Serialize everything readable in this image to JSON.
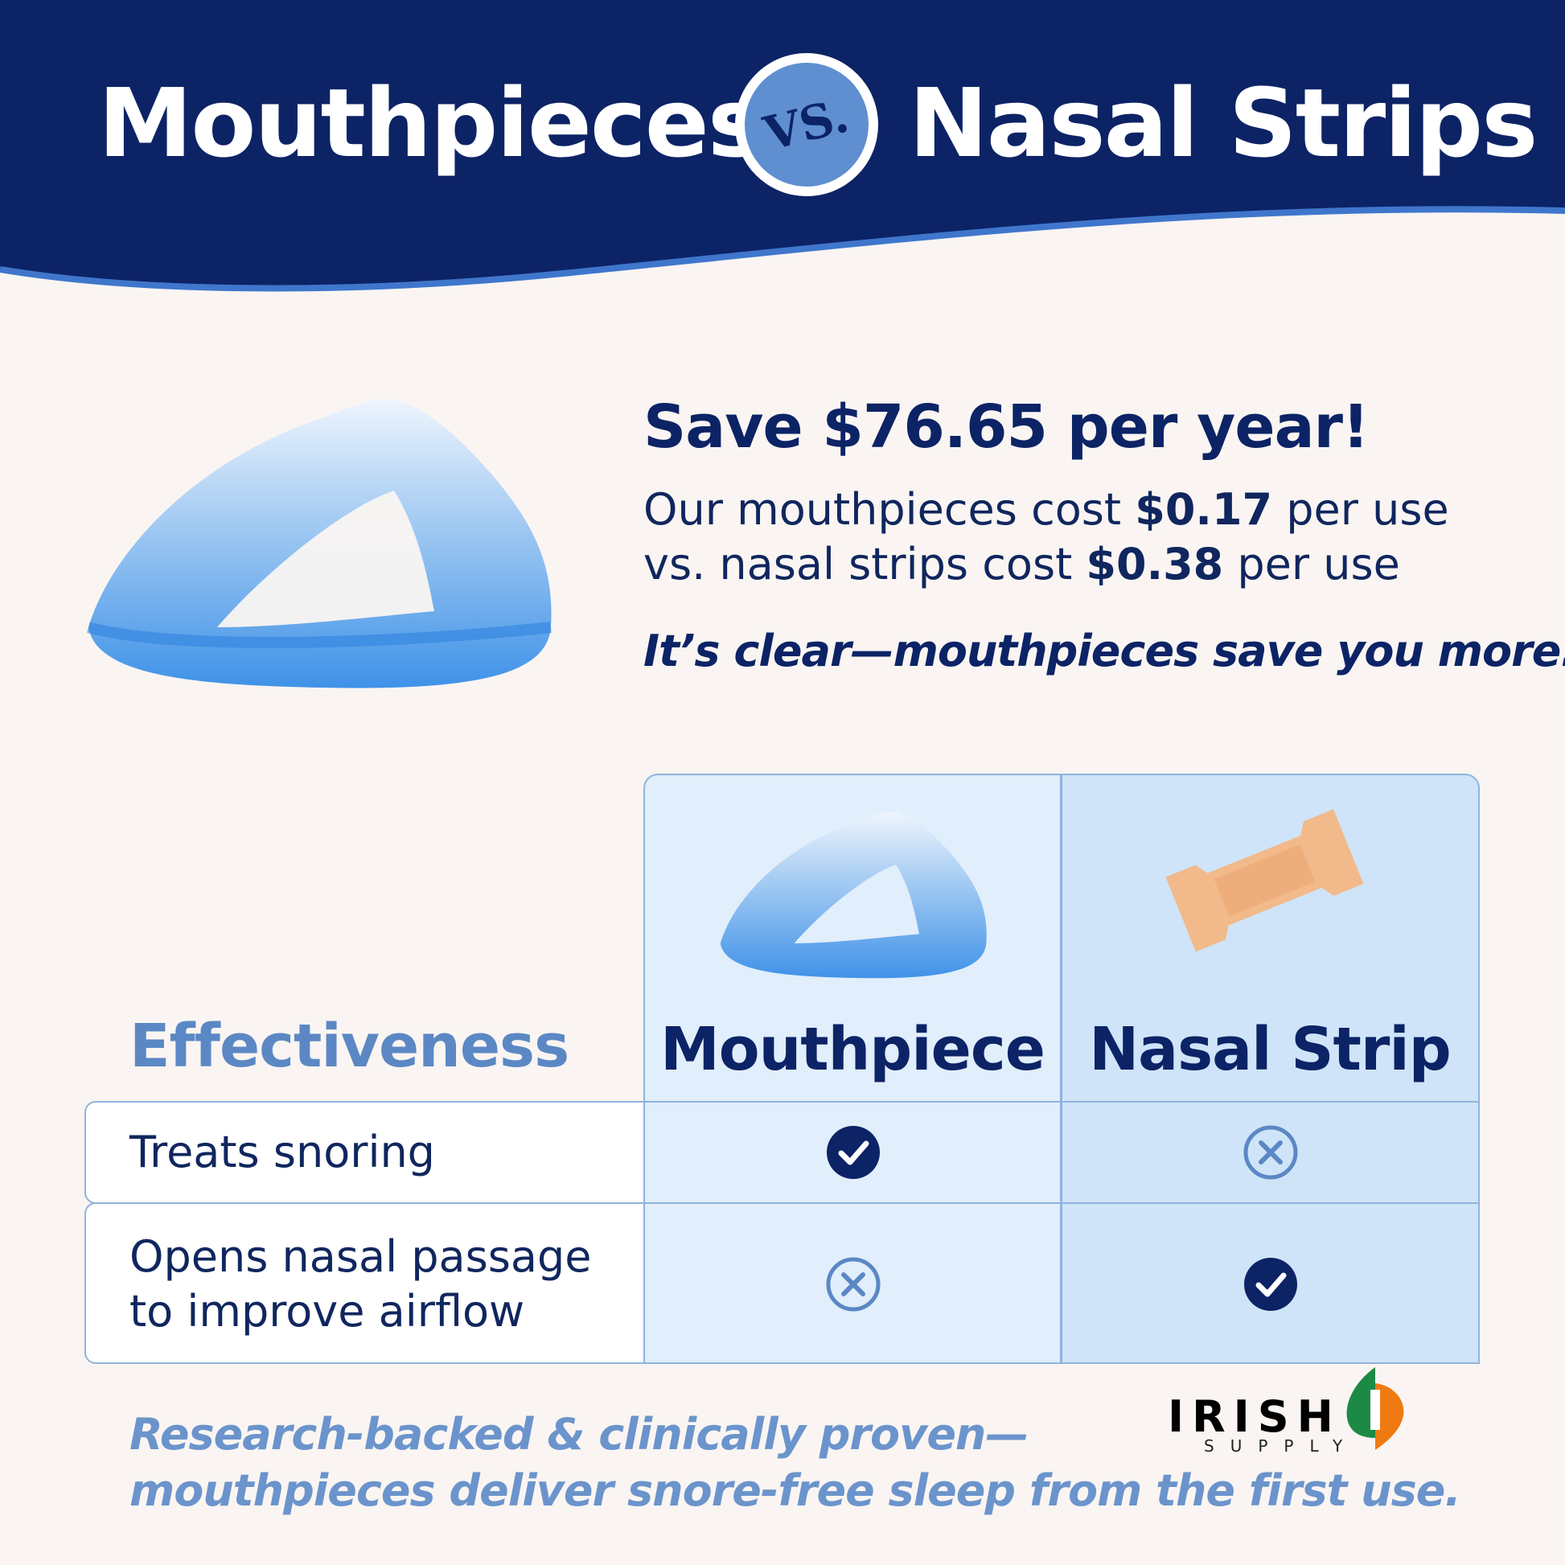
{
  "header": {
    "left_title": "Mouthpieces",
    "vs_label": "VS.",
    "right_title": "Nasal Strips"
  },
  "savings": {
    "headline": "Save $76.65 per year!",
    "line1_pre": "Our mouthpieces cost ",
    "line1_price": "$0.17",
    "line1_post": " per use",
    "line2_pre": "vs. nasal strips cost ",
    "line2_price": "$0.38",
    "line2_post": " per use",
    "tagline": "It’s clear—mouthpieces save you more."
  },
  "table": {
    "section_title": "Effectiveness",
    "columns": [
      "Mouthpiece",
      "Nasal Strip"
    ],
    "rows": [
      {
        "label": "Treats snoring",
        "values": [
          "check",
          "cross"
        ]
      },
      {
        "label_line1": "Opens nasal passage",
        "label_line2": "to improve airflow",
        "values": [
          "cross",
          "check"
        ]
      }
    ]
  },
  "footer": {
    "line1": "Research-backed & clinically proven—",
    "line2": "mouthpieces deliver snore-free sleep from the first use."
  },
  "logo": {
    "name": "IRISH",
    "sub": "SUPPLY"
  },
  "colors": {
    "navy": "#0c2366",
    "accent_blue": "#5b88c4",
    "background": "#faf5f2",
    "logo_green": "#1c8a45",
    "logo_orange": "#f07a12"
  }
}
